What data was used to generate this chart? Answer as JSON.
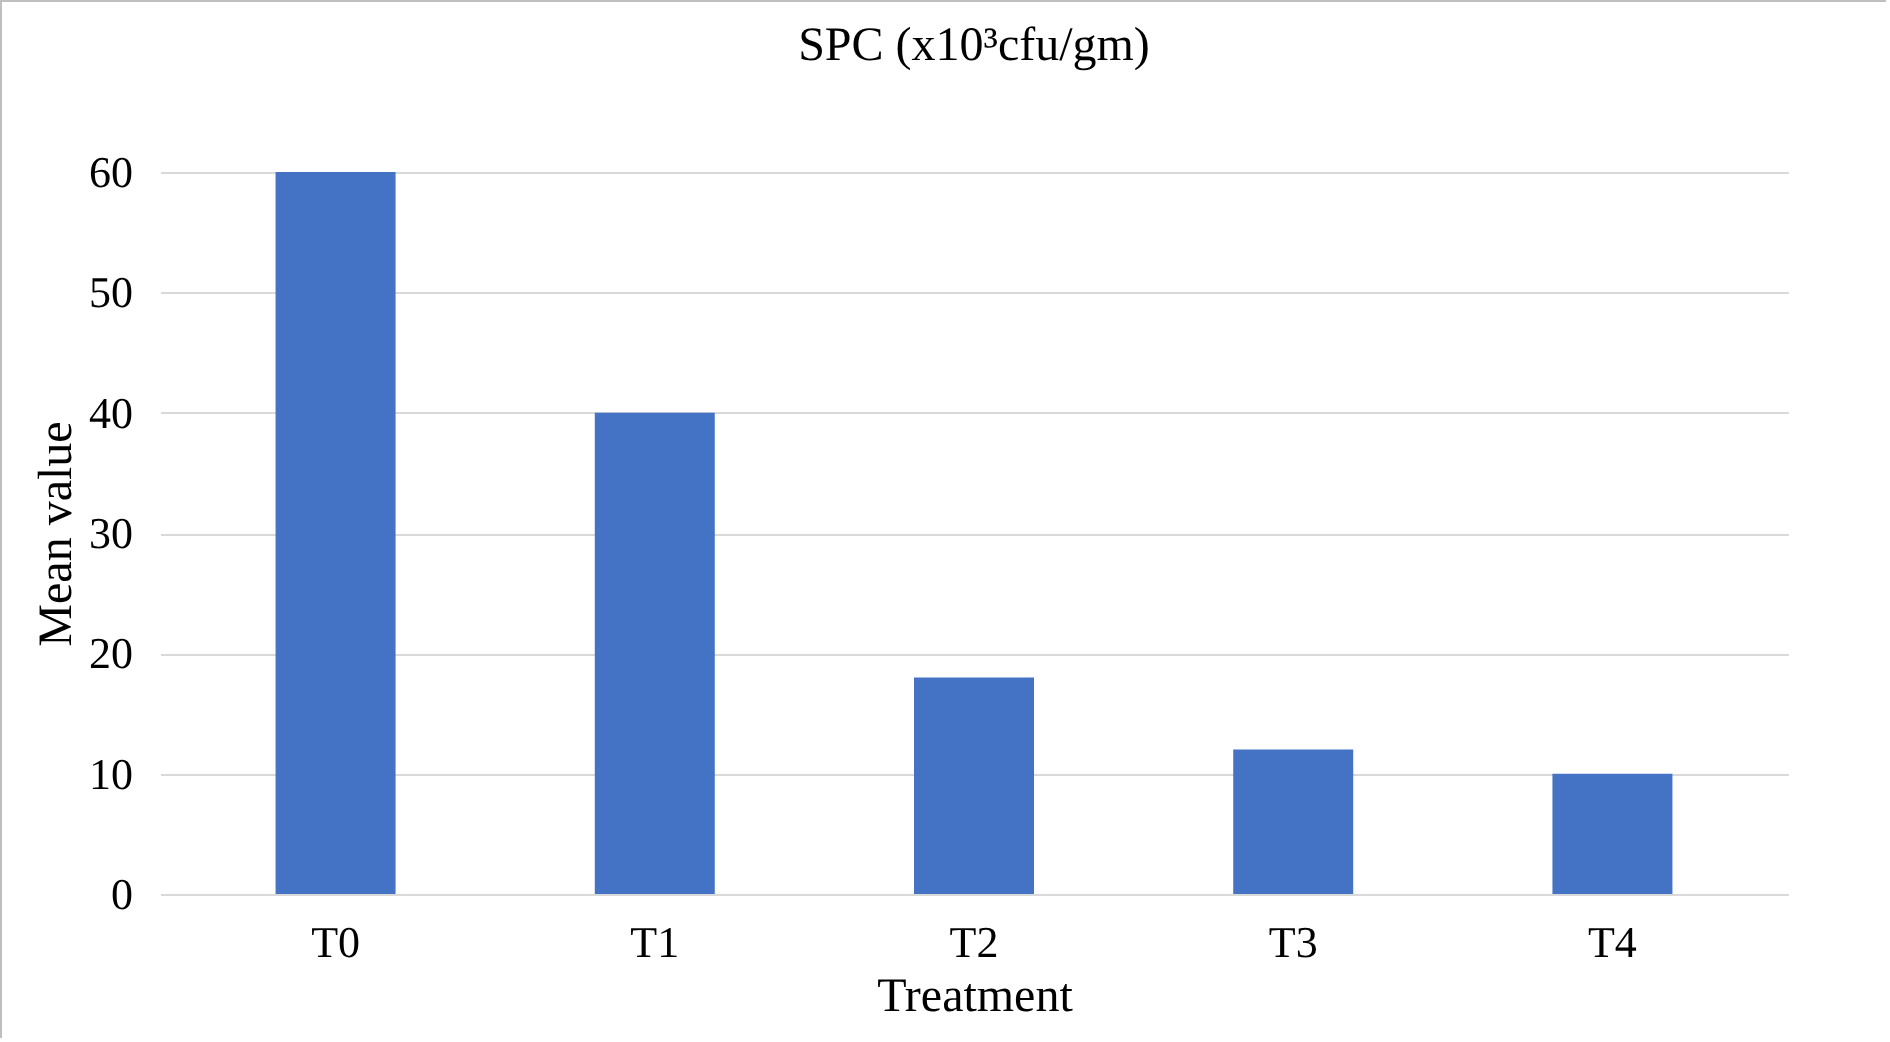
{
  "chart_data": {
    "type": "bar",
    "title": "SPC (x10³cfu/gm)",
    "xlabel": "Treatment",
    "ylabel": "Mean value",
    "categories": [
      "T0",
      "T1",
      "T2",
      "T3",
      "T4"
    ],
    "values": [
      60,
      40,
      18,
      12,
      10
    ],
    "color": "#4472c4",
    "ylim": [
      0,
      60
    ],
    "yticks": [
      0,
      10,
      20,
      30,
      40,
      50,
      60
    ],
    "grid": "y"
  }
}
